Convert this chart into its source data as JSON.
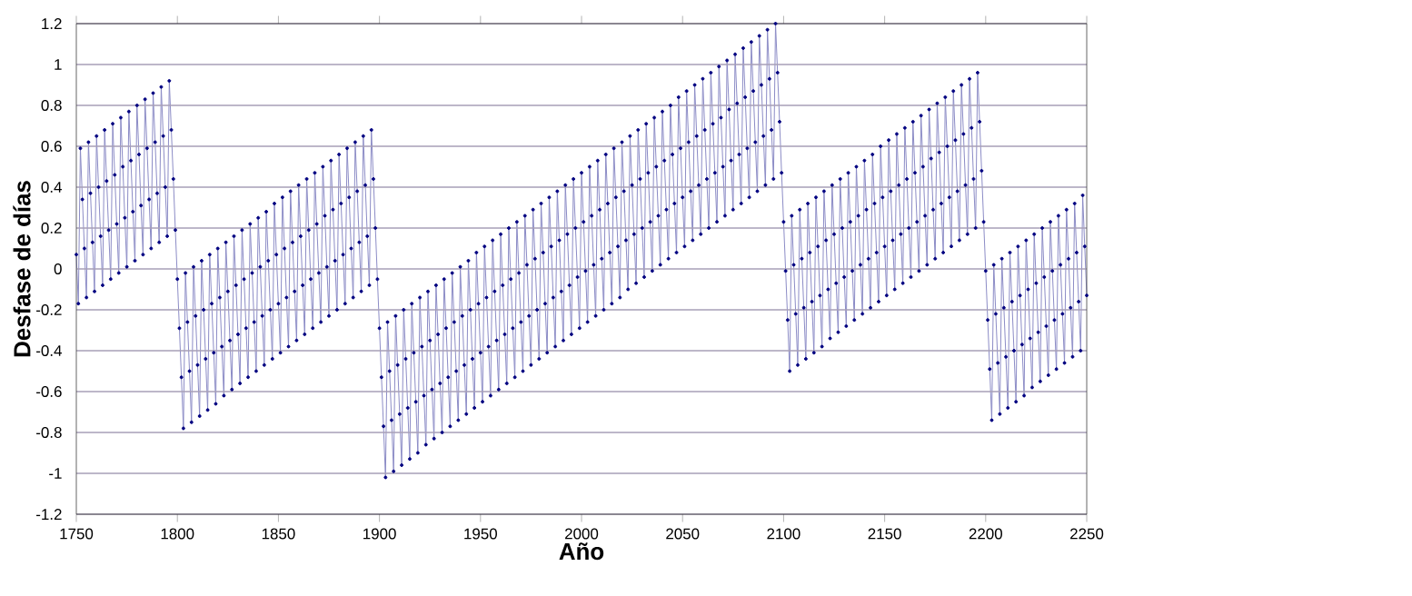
{
  "chart_data": {
    "type": "line",
    "xlabel": "Año",
    "ylabel": "Desfase de días",
    "color": "#000080",
    "marker": "circle",
    "line_style": "solid",
    "grid": "y",
    "xlim": [
      1750,
      2250
    ],
    "xticks": [
      1750,
      1800,
      1850,
      1900,
      1950,
      2000,
      2050,
      2100,
      2150,
      2200,
      2250
    ],
    "ylim": [
      -1.2,
      1.2
    ],
    "yticks": [
      -1.2,
      -1,
      -0.8,
      -0.6,
      -0.4,
      -0.2,
      0,
      0.2,
      0.4,
      0.6,
      0.8,
      1,
      1.2
    ],
    "x": [
      1750,
      1751,
      1752,
      1753,
      1754,
      1755,
      1756,
      1757,
      1758,
      1759,
      1760,
      1761,
      1762,
      1763,
      1764,
      1765,
      1766,
      1767,
      1768,
      1769,
      1770,
      1771,
      1772,
      1773,
      1774,
      1775,
      1776,
      1777,
      1778,
      1779,
      1780,
      1781,
      1782,
      1783,
      1784,
      1785,
      1786,
      1787,
      1788,
      1789,
      1790,
      1791,
      1792,
      1793,
      1794,
      1795,
      1796,
      1797,
      1798,
      1799,
      1800,
      1801,
      1802,
      1803,
      1804,
      1805,
      1806,
      1807,
      1808,
      1809,
      1810,
      1811,
      1812,
      1813,
      1814,
      1815,
      1816,
      1817,
      1818,
      1819,
      1820,
      1821,
      1822,
      1823,
      1824,
      1825,
      1826,
      1827,
      1828,
      1829,
      1830,
      1831,
      1832,
      1833,
      1834,
      1835,
      1836,
      1837,
      1838,
      1839,
      1840,
      1841,
      1842,
      1843,
      1844,
      1845,
      1846,
      1847,
      1848,
      1849,
      1850,
      1851,
      1852,
      1853,
      1854,
      1855,
      1856,
      1857,
      1858,
      1859,
      1860,
      1861,
      1862,
      1863,
      1864,
      1865,
      1866,
      1867,
      1868,
      1869,
      1870,
      1871,
      1872,
      1873,
      1874,
      1875,
      1876,
      1877,
      1878,
      1879,
      1880,
      1881,
      1882,
      1883,
      1884,
      1885,
      1886,
      1887,
      1888,
      1889,
      1890,
      1891,
      1892,
      1893,
      1894,
      1895,
      1896,
      1897,
      1898,
      1899,
      1900,
      1901,
      1902,
      1903,
      1904,
      1905,
      1906,
      1907,
      1908,
      1909,
      1910,
      1911,
      1912,
      1913,
      1914,
      1915,
      1916,
      1917,
      1918,
      1919,
      1920,
      1921,
      1922,
      1923,
      1924,
      1925,
      1926,
      1927,
      1928,
      1929,
      1930,
      1931,
      1932,
      1933,
      1934,
      1935,
      1936,
      1937,
      1938,
      1939,
      1940,
      1941,
      1942,
      1943,
      1944,
      1945,
      1946,
      1947,
      1948,
      1949,
      1950,
      1951,
      1952,
      1953,
      1954,
      1955,
      1956,
      1957,
      1958,
      1959,
      1960,
      1961,
      1962,
      1963,
      1964,
      1965,
      1966,
      1967,
      1968,
      1969,
      1970,
      1971,
      1972,
      1973,
      1974,
      1975,
      1976,
      1977,
      1978,
      1979,
      1980,
      1981,
      1982,
      1983,
      1984,
      1985,
      1986,
      1987,
      1988,
      1989,
      1990,
      1991,
      1992,
      1993,
      1994,
      1995,
      1996,
      1997,
      1998,
      1999,
      2000,
      2001,
      2002,
      2003,
      2004,
      2005,
      2006,
      2007,
      2008,
      2009,
      2010,
      2011,
      2012,
      2013,
      2014,
      2015,
      2016,
      2017,
      2018,
      2019,
      2020,
      2021,
      2022,
      2023,
      2024,
      2025,
      2026,
      2027,
      2028,
      2029,
      2030,
      2031,
      2032,
      2033,
      2034,
      2035,
      2036,
      2037,
      2038,
      2039,
      2040,
      2041,
      2042,
      2043,
      2044,
      2045,
      2046,
      2047,
      2048,
      2049,
      2050,
      2051,
      2052,
      2053,
      2054,
      2055,
      2056,
      2057,
      2058,
      2059,
      2060,
      2061,
      2062,
      2063,
      2064,
      2065,
      2066,
      2067,
      2068,
      2069,
      2070,
      2071,
      2072,
      2073,
      2074,
      2075,
      2076,
      2077,
      2078,
      2079,
      2080,
      2081,
      2082,
      2083,
      2084,
      2085,
      2086,
      2087,
      2088,
      2089,
      2090,
      2091,
      2092,
      2093,
      2094,
      2095,
      2096,
      2097,
      2098,
      2099,
      2100,
      2101,
      2102,
      2103,
      2104,
      2105,
      2106,
      2107,
      2108,
      2109,
      2110,
      2111,
      2112,
      2113,
      2114,
      2115,
      2116,
      2117,
      2118,
      2119,
      2120,
      2121,
      2122,
      2123,
      2124,
      2125,
      2126,
      2127,
      2128,
      2129,
      2130,
      2131,
      2132,
      2133,
      2134,
      2135,
      2136,
      2137,
      2138,
      2139,
      2140,
      2141,
      2142,
      2143,
      2144,
      2145,
      2146,
      2147,
      2148,
      2149,
      2150,
      2151,
      2152,
      2153,
      2154,
      2155,
      2156,
      2157,
      2158,
      2159,
      2160,
      2161,
      2162,
      2163,
      2164,
      2165,
      2166,
      2167,
      2168,
      2169,
      2170,
      2171,
      2172,
      2173,
      2174,
      2175,
      2176,
      2177,
      2178,
      2179,
      2180,
      2181,
      2182,
      2183,
      2184,
      2185,
      2186,
      2187,
      2188,
      2189,
      2190,
      2191,
      2192,
      2193,
      2194,
      2195,
      2196,
      2197,
      2198,
      2199,
      2200,
      2201,
      2202,
      2203,
      2204,
      2205,
      2206,
      2207,
      2208,
      2209,
      2210,
      2211,
      2212,
      2213,
      2214,
      2215,
      2216,
      2217,
      2218,
      2219,
      2220,
      2221,
      2222,
      2223,
      2224,
      2225,
      2226,
      2227,
      2228,
      2229,
      2230,
      2231,
      2232,
      2233,
      2234,
      2235,
      2236,
      2237,
      2238,
      2239,
      2240,
      2241,
      2242,
      2243,
      2244,
      2245,
      2246,
      2247,
      2248,
      2249,
      2250
    ],
    "values": [
      0.07,
      -0.17,
      0.59,
      0.34,
      0.1,
      -0.14,
      0.62,
      0.37,
      0.13,
      -0.11,
      0.65,
      0.4,
      0.16,
      -0.08,
      0.68,
      0.43,
      0.19,
      -0.05,
      0.71,
      0.46,
      0.22,
      -0.02,
      0.74,
      0.5,
      0.25,
      0.01,
      0.77,
      0.53,
      0.28,
      0.04,
      0.8,
      0.56,
      0.31,
      0.07,
      0.83,
      0.59,
      0.34,
      0.1,
      0.86,
      0.62,
      0.37,
      0.13,
      0.89,
      0.65,
      0.4,
      0.16,
      0.92,
      0.68,
      0.44,
      0.19,
      -0.05,
      -0.29,
      -0.53,
      -0.78,
      -0.02,
      -0.26,
      -0.5,
      -0.75,
      0.01,
      -0.23,
      -0.47,
      -0.72,
      0.04,
      -0.2,
      -0.44,
      -0.69,
      0.07,
      -0.17,
      -0.41,
      -0.66,
      0.1,
      -0.14,
      -0.38,
      -0.62,
      0.13,
      -0.11,
      -0.35,
      -0.59,
      0.16,
      -0.08,
      -0.32,
      -0.56,
      0.19,
      -0.05,
      -0.29,
      -0.53,
      0.22,
      -0.02,
      -0.26,
      -0.5,
      0.25,
      0.01,
      -0.23,
      -0.47,
      0.28,
      0.04,
      -0.2,
      -0.44,
      0.32,
      0.07,
      -0.17,
      -0.41,
      0.35,
      0.1,
      -0.14,
      -0.38,
      0.38,
      0.13,
      -0.11,
      -0.35,
      0.41,
      0.16,
      -0.08,
      -0.32,
      0.44,
      0.19,
      -0.05,
      -0.29,
      0.47,
      0.22,
      -0.02,
      -0.26,
      0.5,
      0.26,
      0.01,
      -0.23,
      0.53,
      0.29,
      0.04,
      -0.2,
      0.56,
      0.32,
      0.07,
      -0.17,
      0.59,
      0.35,
      0.1,
      -0.14,
      0.62,
      0.38,
      0.13,
      -0.11,
      0.65,
      0.41,
      0.16,
      -0.08,
      0.68,
      0.44,
      0.2,
      -0.05,
      -0.29,
      -0.53,
      -0.77,
      -1.02,
      -0.26,
      -0.5,
      -0.74,
      -0.99,
      -0.23,
      -0.47,
      -0.71,
      -0.96,
      -0.2,
      -0.44,
      -0.68,
      -0.93,
      -0.17,
      -0.41,
      -0.65,
      -0.9,
      -0.14,
      -0.38,
      -0.62,
      -0.86,
      -0.11,
      -0.35,
      -0.59,
      -0.83,
      -0.08,
      -0.32,
      -0.56,
      -0.8,
      -0.05,
      -0.29,
      -0.53,
      -0.77,
      -0.02,
      -0.26,
      -0.5,
      -0.74,
      0.01,
      -0.23,
      -0.47,
      -0.71,
      0.04,
      -0.2,
      -0.44,
      -0.68,
      0.08,
      -0.17,
      -0.41,
      -0.65,
      0.11,
      -0.14,
      -0.38,
      -0.62,
      0.14,
      -0.11,
      -0.35,
      -0.59,
      0.17,
      -0.08,
      -0.32,
      -0.56,
      0.2,
      -0.05,
      -0.29,
      -0.53,
      0.23,
      -0.02,
      -0.26,
      -0.5,
      0.26,
      0.02,
      -0.23,
      -0.47,
      0.29,
      0.05,
      -0.2,
      -0.44,
      0.32,
      0.08,
      -0.17,
      -0.41,
      0.35,
      0.11,
      -0.14,
      -0.38,
      0.38,
      0.14,
      -0.11,
      -0.35,
      0.41,
      0.17,
      -0.08,
      -0.32,
      0.44,
      0.2,
      -0.04,
      -0.29,
      0.47,
      0.23,
      -0.01,
      -0.26,
      0.5,
      0.26,
      0.02,
      -0.23,
      0.53,
      0.29,
      0.05,
      -0.2,
      0.56,
      0.32,
      0.08,
      -0.17,
      0.59,
      0.35,
      0.11,
      -0.14,
      0.62,
      0.38,
      0.14,
      -0.1,
      0.65,
      0.41,
      0.17,
      -0.07,
      0.68,
      0.44,
      0.2,
      -0.04,
      0.71,
      0.47,
      0.23,
      -0.01,
      0.74,
      0.5,
      0.26,
      0.02,
      0.77,
      0.53,
      0.29,
      0.05,
      0.8,
      0.56,
      0.32,
      0.08,
      0.84,
      0.59,
      0.35,
      0.11,
      0.87,
      0.62,
      0.38,
      0.14,
      0.9,
      0.65,
      0.41,
      0.17,
      0.93,
      0.68,
      0.44,
      0.2,
      0.96,
      0.71,
      0.47,
      0.23,
      0.99,
      0.74,
      0.5,
      0.26,
      1.02,
      0.78,
      0.53,
      0.29,
      1.05,
      0.81,
      0.56,
      0.32,
      1.08,
      0.84,
      0.59,
      0.35,
      1.11,
      0.87,
      0.62,
      0.38,
      1.14,
      0.9,
      0.65,
      0.41,
      1.17,
      0.93,
      0.68,
      0.44,
      1.2,
      0.96,
      0.72,
      0.47,
      0.23,
      -0.01,
      -0.25,
      -0.5,
      0.26,
      0.02,
      -0.22,
      -0.47,
      0.29,
      0.05,
      -0.19,
      -0.44,
      0.32,
      0.08,
      -0.16,
      -0.41,
      0.35,
      0.11,
      -0.13,
      -0.38,
      0.38,
      0.14,
      -0.1,
      -0.34,
      0.41,
      0.17,
      -0.07,
      -0.31,
      0.44,
      0.2,
      -0.04,
      -0.28,
      0.47,
      0.23,
      -0.01,
      -0.25,
      0.5,
      0.26,
      0.02,
      -0.22,
      0.53,
      0.29,
      0.05,
      -0.19,
      0.56,
      0.32,
      0.08,
      -0.16,
      0.6,
      0.35,
      0.11,
      -0.13,
      0.63,
      0.38,
      0.14,
      -0.1,
      0.66,
      0.41,
      0.17,
      -0.07,
      0.69,
      0.44,
      0.2,
      -0.04,
      0.72,
      0.47,
      0.23,
      -0.01,
      0.75,
      0.5,
      0.26,
      0.02,
      0.78,
      0.54,
      0.29,
      0.05,
      0.81,
      0.57,
      0.32,
      0.08,
      0.84,
      0.6,
      0.35,
      0.11,
      0.87,
      0.63,
      0.38,
      0.14,
      0.9,
      0.66,
      0.41,
      0.17,
      0.93,
      0.69,
      0.44,
      0.2,
      0.96,
      0.72,
      0.48,
      0.23,
      -0.01,
      -0.25,
      -0.49,
      -0.74,
      0.02,
      -0.22,
      -0.46,
      -0.71,
      0.05,
      -0.19,
      -0.43,
      -0.68,
      0.08,
      -0.16,
      -0.4,
      -0.65,
      0.11,
      -0.13,
      -0.37,
      -0.62,
      0.14,
      -0.1,
      -0.34,
      -0.58,
      0.17,
      -0.07,
      -0.31,
      -0.55,
      0.2,
      -0.04,
      -0.28,
      -0.52,
      0.23,
      -0.01,
      -0.25,
      -0.49,
      0.26,
      0.02,
      -0.22,
      -0.46,
      0.29,
      0.05,
      -0.19,
      -0.43,
      0.32,
      0.08,
      -0.16,
      -0.4,
      0.36,
      0.11,
      -0.13
    ]
  }
}
